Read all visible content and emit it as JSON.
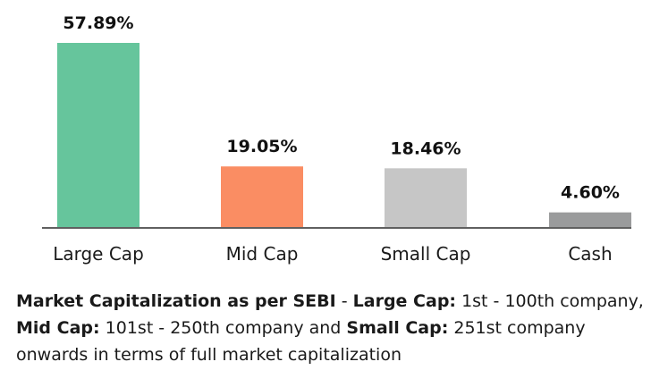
{
  "chart_data": {
    "type": "bar",
    "categories": [
      "Large Cap",
      "Mid Cap",
      "Small Cap",
      "Cash"
    ],
    "values": [
      57.89,
      19.05,
      18.46,
      4.6
    ],
    "value_labels": [
      "57.89%",
      "19.05%",
      "18.46%",
      "4.60%"
    ],
    "colors": [
      "#66c59c",
      "#fa8d63",
      "#c6c6c6",
      "#9a9b9c"
    ],
    "ylim": [
      0,
      57.89
    ],
    "grid": false,
    "legend": "none"
  },
  "footnote": {
    "t1": "Market Capitalization as per SEBI",
    "t2": " - ",
    "t3": "Large Cap:",
    "t4": " 1st - 100th company, ",
    "t5": "Mid Cap:",
    "t6": " 101st - 250th company and ",
    "t7": "Small Cap:",
    "t8": " 251st company onwards in terms of full market capitalization"
  }
}
